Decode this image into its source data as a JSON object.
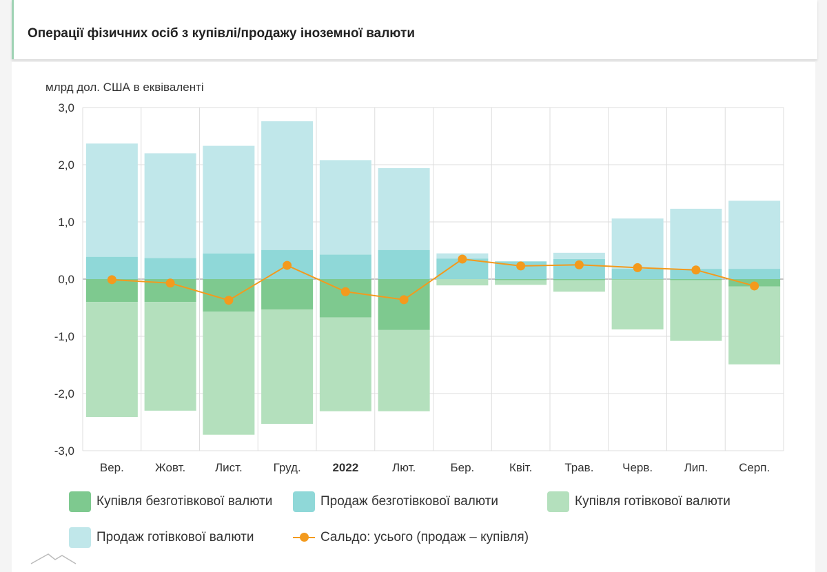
{
  "header": {
    "title": "Операції фізичних осіб з купівлі/продажу іноземної валюти"
  },
  "chart_data": {
    "type": "bar",
    "stacked": true,
    "ylabel": "млрд дол. США в еквіваленті",
    "ylim": [
      -3,
      3
    ],
    "yticks": [
      "3,0",
      "2,0",
      "1,0",
      "0,0",
      "-1,0",
      "-2,0",
      "-3,0"
    ],
    "ytick_values": [
      3,
      2,
      1,
      0,
      -1,
      -2,
      -3
    ],
    "grid": true,
    "legend_position": "bottom",
    "categories": [
      "Вер.",
      "Жовт.",
      "Лист.",
      "Груд.",
      "2022",
      "Лют.",
      "Бер.",
      "Квіт.",
      "Трав.",
      "Черв.",
      "Лип.",
      "Серп."
    ],
    "bold_categories": [
      "2022"
    ],
    "series": [
      {
        "name": "Купівля безготівкової валюти",
        "type": "bar",
        "color": "#7ec98f",
        "values": [
          -0.4,
          -0.4,
          -0.57,
          -0.53,
          -0.67,
          -0.89,
          0,
          -0.02,
          -0.02,
          -0.01,
          -0.02,
          -0.13
        ]
      },
      {
        "name": "Продаж безготівкової валюти",
        "type": "bar",
        "color": "#8fd8d8",
        "values": [
          0.39,
          0.37,
          0.45,
          0.51,
          0.43,
          0.51,
          0.36,
          0.31,
          0.35,
          0.18,
          0.18,
          0.18
        ]
      },
      {
        "name": "Купівля готівкової валюти",
        "type": "bar",
        "color": "#b4e0bd",
        "values": [
          -2.01,
          -1.9,
          -2.15,
          -2.0,
          -1.64,
          -1.42,
          -0.11,
          -0.08,
          -0.2,
          -0.87,
          -1.06,
          -1.36
        ]
      },
      {
        "name": "Продаж готівкової валюти",
        "type": "bar",
        "color": "#c0e7ea",
        "values": [
          1.98,
          1.83,
          1.88,
          2.25,
          1.65,
          1.43,
          0.09,
          0.0,
          0.11,
          0.88,
          1.05,
          1.19
        ]
      },
      {
        "name": "Сальдо: усього (продаж – купівля)",
        "type": "line",
        "color": "#f39a1d",
        "values": [
          -0.01,
          -0.07,
          -0.37,
          0.24,
          -0.22,
          -0.36,
          0.35,
          0.23,
          0.25,
          0.2,
          0.16,
          -0.12
        ]
      }
    ]
  }
}
